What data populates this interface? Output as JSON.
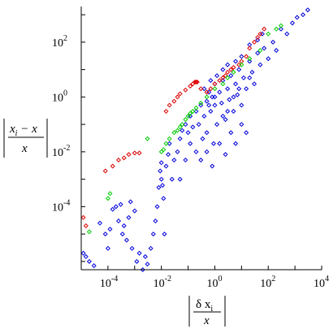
{
  "chart_data": {
    "type": "scatter",
    "x_scale": "log",
    "y_scale": "log",
    "xlim": [
      1e-05,
      10000.0
    ],
    "ylim": [
      5e-07,
      2000.0
    ],
    "x_ticks": [
      {
        "value": 0.0001,
        "label": "10",
        "exp": "-4"
      },
      {
        "value": 0.01,
        "label": "10",
        "exp": "-2"
      },
      {
        "value": 1,
        "label": "10",
        "exp": "0"
      },
      {
        "value": 100.0,
        "label": "10",
        "exp": "2"
      },
      {
        "value": 10000.0,
        "label": "10",
        "exp": "4"
      }
    ],
    "y_ticks": [
      {
        "value": 0.0001,
        "label": "10",
        "exp": "-4"
      },
      {
        "value": 0.01,
        "label": "10",
        "exp": "-2"
      },
      {
        "value": 1,
        "label": "10",
        "exp": "0"
      },
      {
        "value": 100.0,
        "label": "10",
        "exp": "2"
      }
    ],
    "xlabel": {
      "top": "δ x",
      "top_sub": "i",
      "bottom": "x"
    },
    "ylabel": {
      "top": "x",
      "top_sub": "i",
      "top_rest": " − x",
      "bottom": "x"
    },
    "colors": {
      "blue": "#0000dd",
      "red": "#dd0000",
      "green": "#00cc00"
    },
    "series": [
      {
        "color": "red",
        "points": [
          [
            1.2e-05,
            4e-05
          ],
          [
            1.5e-05,
            2e-05
          ],
          [
            8e-05,
            0.002
          ],
          [
            0.00015,
            0.003
          ],
          [
            0.00025,
            0.005
          ],
          [
            0.0004,
            0.006
          ],
          [
            0.0006,
            0.008
          ],
          [
            0.001,
            0.009
          ],
          [
            0.0015,
            0.009
          ],
          [
            0.015,
            0.3
          ],
          [
            0.02,
            0.5
          ],
          [
            0.03,
            0.7
          ],
          [
            0.04,
            1.0
          ],
          [
            0.05,
            1.3
          ],
          [
            0.08,
            1.8
          ],
          [
            0.12,
            2.5
          ],
          [
            0.15,
            3
          ],
          [
            0.18,
            3.5
          ],
          [
            0.2,
            3.5
          ],
          [
            0.22,
            3.5
          ],
          [
            0.3,
            2.0
          ],
          [
            0.5,
            1.5
          ],
          [
            0.7,
            2.0
          ],
          [
            1.0,
            3
          ],
          [
            1.5,
            4
          ],
          [
            2,
            5
          ],
          [
            2.5,
            6
          ],
          [
            3,
            8
          ],
          [
            4,
            10
          ],
          [
            5,
            12
          ],
          [
            8,
            15
          ],
          [
            10,
            20
          ],
          [
            15,
            30
          ],
          [
            20,
            60
          ],
          [
            30,
            100
          ],
          [
            40,
            150
          ],
          [
            50,
            200
          ],
          [
            70,
            300
          ]
        ]
      },
      {
        "color": "green",
        "points": [
          [
            2e-05,
            1.2e-05
          ],
          [
            0.0001,
            0.0002
          ],
          [
            0.00012,
            0.0003
          ],
          [
            0.003,
            0.03
          ],
          [
            0.01,
            0.01
          ],
          [
            0.012,
            0.012
          ],
          [
            0.015,
            0.02
          ],
          [
            0.02,
            0.03
          ],
          [
            0.03,
            0.05
          ],
          [
            0.04,
            0.06
          ],
          [
            0.05,
            0.08
          ],
          [
            0.06,
            0.1
          ],
          [
            0.08,
            0.15
          ],
          [
            0.1,
            0.2
          ],
          [
            0.12,
            0.25
          ],
          [
            0.15,
            0.3
          ],
          [
            0.2,
            0.4
          ],
          [
            0.3,
            0.6
          ],
          [
            0.5,
            1.0
          ],
          [
            1,
            2
          ],
          [
            2,
            3
          ],
          [
            3,
            5
          ],
          [
            5,
            8
          ],
          [
            10,
            15
          ],
          [
            20,
            25
          ],
          [
            50,
            50
          ],
          [
            100,
            200
          ],
          [
            200,
            300
          ],
          [
            300,
            400
          ]
        ]
      },
      {
        "color": "blue",
        "points": [
          [
            1.2e-05,
            2e-06
          ],
          [
            1.5e-05,
            1.5e-06
          ],
          [
            2e-05,
            1e-06
          ],
          [
            3e-05,
            7e-07
          ],
          [
            5e-05,
            2.5e-05
          ],
          [
            8e-05,
            1e-05
          ],
          [
            0.0001,
            3e-06
          ],
          [
            0.00012,
            1.5e-05
          ],
          [
            0.00015,
            8e-05
          ],
          [
            0.0002,
            0.0001
          ],
          [
            0.00025,
            3e-05
          ],
          [
            0.0003,
            0.00012
          ],
          [
            0.00035,
            1e-05
          ],
          [
            0.0004,
            2e-05
          ],
          [
            0.0005,
            6e-06
          ],
          [
            0.0006,
            4e-05
          ],
          [
            0.0007,
            0.00015
          ],
          [
            0.0008,
            3e-06
          ],
          [
            0.001,
            7e-05
          ],
          [
            0.0012,
            1e-06
          ],
          [
            0.0015,
            2e-06
          ],
          [
            0.002,
            5e-07
          ],
          [
            0.0025,
            1.5e-06
          ],
          [
            0.003,
            8e-07
          ],
          [
            0.004,
            3e-06
          ],
          [
            0.005,
            1e-05
          ],
          [
            0.006,
            3e-05
          ],
          [
            0.007,
            0.0001
          ],
          [
            0.008,
            0.0005
          ],
          [
            0.009,
            0.002
          ],
          [
            0.01,
            0.004
          ],
          [
            0.01,
            0.001
          ],
          [
            0.011,
            0.0006
          ],
          [
            0.012,
            0.0002
          ],
          [
            0.013,
            1e-05
          ],
          [
            0.015,
            0.003
          ],
          [
            0.018,
            0.008
          ],
          [
            0.02,
            0.02
          ],
          [
            0.025,
            0.001
          ],
          [
            0.03,
            0.005
          ],
          [
            0.04,
            0.01
          ],
          [
            0.05,
            0.03
          ],
          [
            0.06,
            0.06
          ],
          [
            0.08,
            0.1
          ],
          [
            0.1,
            0.05
          ],
          [
            0.12,
            0.2
          ],
          [
            0.15,
            0.08
          ],
          [
            0.2,
            0.3
          ],
          [
            0.25,
            0.1
          ],
          [
            0.3,
            0.5
          ],
          [
            0.35,
            0.03
          ],
          [
            0.4,
            0.2
          ],
          [
            0.5,
            0.7
          ],
          [
            0.5,
            0.05
          ],
          [
            0.6,
            1.5
          ],
          [
            0.7,
            0.3
          ],
          [
            0.8,
            1.0
          ],
          [
            0.9,
            0.02
          ],
          [
            1.0,
            0.5
          ],
          [
            1.0,
            3.0
          ],
          [
            1.2,
            0.1
          ],
          [
            1.5,
            1.5
          ],
          [
            1.8,
            0.6
          ],
          [
            2,
            4
          ],
          [
            2.5,
            0.15
          ],
          [
            3,
            2
          ],
          [
            3.5,
            0.8
          ],
          [
            4,
            6
          ],
          [
            5,
            0.3
          ],
          [
            6,
            3
          ],
          [
            7,
            1.2
          ],
          [
            8,
            10
          ],
          [
            10,
            0.5
          ],
          [
            12,
            5
          ],
          [
            15,
            2
          ],
          [
            20,
            20
          ],
          [
            25,
            8
          ],
          [
            30,
            3
          ],
          [
            40,
            40
          ],
          [
            50,
            15
          ],
          [
            70,
            60
          ],
          [
            100,
            25
          ],
          [
            150,
            100
          ],
          [
            200,
            50
          ],
          [
            300,
            300
          ],
          [
            500,
            200
          ],
          [
            800,
            500
          ],
          [
            1200,
            800
          ],
          [
            2000,
            1000
          ],
          [
            3000,
            1500
          ],
          [
            0.3,
            0.005
          ],
          [
            0.5,
            0.01
          ],
          [
            0.8,
            0.003
          ],
          [
            1.5,
            0.02
          ],
          [
            2.5,
            0.008
          ],
          [
            4,
            0.05
          ],
          [
            6,
            0.02
          ],
          [
            10,
            0.1
          ],
          [
            15,
            0.05
          ],
          [
            3,
            0.3
          ],
          [
            0.05,
            0.001
          ],
          [
            0.08,
            0.005
          ],
          [
            0.12,
            0.02
          ],
          [
            0.2,
            0.01
          ],
          [
            0.6,
            0.5
          ],
          [
            1.0,
            1.0
          ],
          [
            2,
            0.2
          ],
          [
            5,
            1
          ],
          [
            8,
            2
          ],
          [
            20,
            5
          ],
          [
            0.4,
            2
          ],
          [
            0.7,
            4
          ],
          [
            1.2,
            6
          ],
          [
            2,
            10
          ],
          [
            3,
            15
          ],
          [
            6,
            20
          ],
          [
            10,
            30
          ],
          [
            20,
            80
          ],
          [
            40,
            120
          ],
          [
            60,
            200
          ]
        ]
      }
    ]
  }
}
